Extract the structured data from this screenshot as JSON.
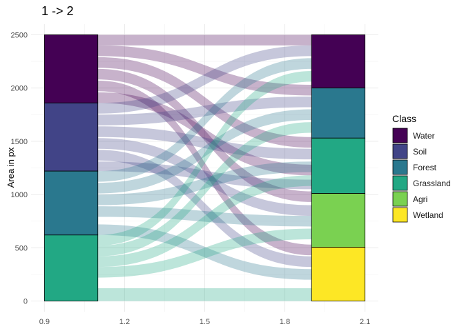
{
  "chart_data": {
    "type": "alluvial",
    "title": "1 -> 2",
    "xlabel": "",
    "ylabel": "Area in px",
    "xlim": [
      0.85,
      2.15
    ],
    "ylim": [
      -100,
      2600
    ],
    "x_ticks": [
      0.9,
      1.2,
      1.5,
      1.8,
      2.1
    ],
    "x_tick_labels": [
      "0.9",
      "1.2",
      "1.5",
      "1.8",
      "2.1"
    ],
    "y_ticks": [
      0,
      500,
      1000,
      1500,
      2000,
      2500
    ],
    "y_tick_labels": [
      "0",
      "500",
      "1000",
      "1500",
      "2000",
      "2500"
    ],
    "grid": true,
    "legend_title": "Class",
    "legend_position": "right",
    "classes": [
      {
        "name": "Water",
        "color": "#440154"
      },
      {
        "name": "Soil",
        "color": "#414487"
      },
      {
        "name": "Forest",
        "color": "#2A788E"
      },
      {
        "name": "Grassland",
        "color": "#22A884"
      },
      {
        "name": "Agri",
        "color": "#7AD151"
      },
      {
        "name": "Wetland",
        "color": "#FDE725"
      }
    ],
    "stratum_width": 0.2,
    "axes": [
      {
        "x": 1.0,
        "strata": [
          {
            "class": "Water",
            "from": 1860,
            "to": 2500
          },
          {
            "class": "Soil",
            "from": 1220,
            "to": 1860
          },
          {
            "class": "Forest",
            "from": 620,
            "to": 1220
          },
          {
            "class": "Grassland",
            "from": 0,
            "to": 620
          }
        ]
      },
      {
        "x": 2.0,
        "strata": [
          {
            "class": "Water",
            "from": 2000,
            "to": 2500
          },
          {
            "class": "Forest",
            "from": 1530,
            "to": 2000
          },
          {
            "class": "Grassland",
            "from": 1010,
            "to": 1530
          },
          {
            "class": "Agri",
            "from": 505,
            "to": 1010
          },
          {
            "class": "Wetland",
            "from": 0,
            "to": 505
          }
        ]
      }
    ],
    "flows": [
      {
        "from_class": "Water",
        "y0": [
          2400,
          2500
        ],
        "y1": [
          2400,
          2500
        ]
      },
      {
        "from_class": "Water",
        "y0": [
          2300,
          2400
        ],
        "y1": [
          1930,
          2030
        ]
      },
      {
        "from_class": "Water",
        "y0": [
          2190,
          2290
        ],
        "y1": [
          1440,
          1540
        ]
      },
      {
        "from_class": "Water",
        "y0": [
          2080,
          2180
        ],
        "y1": [
          930,
          1030
        ]
      },
      {
        "from_class": "Water",
        "y0": [
          1970,
          2070
        ],
        "y1": [
          430,
          530
        ]
      },
      {
        "from_class": "Water",
        "y0": [
          1860,
          1960
        ],
        "y1": [
          1180,
          1280
        ]
      },
      {
        "from_class": "Soil",
        "y0": [
          1760,
          1860
        ],
        "y1": [
          2300,
          2400
        ]
      },
      {
        "from_class": "Soil",
        "y0": [
          1650,
          1750
        ],
        "y1": [
          1820,
          1920
        ]
      },
      {
        "from_class": "Soil",
        "y0": [
          1540,
          1640
        ],
        "y1": [
          1330,
          1430
        ]
      },
      {
        "from_class": "Soil",
        "y0": [
          1430,
          1530
        ],
        "y1": [
          800,
          900
        ]
      },
      {
        "from_class": "Soil",
        "y0": [
          1320,
          1420
        ],
        "y1": [
          320,
          420
        ]
      },
      {
        "from_class": "Soil",
        "y0": [
          1220,
          1310
        ],
        "y1": [
          1050,
          1140
        ]
      },
      {
        "from_class": "Forest",
        "y0": [
          1120,
          1220
        ],
        "y1": [
          2180,
          2280
        ]
      },
      {
        "from_class": "Forest",
        "y0": [
          1010,
          1110
        ],
        "y1": [
          1700,
          1800
        ]
      },
      {
        "from_class": "Forest",
        "y0": [
          900,
          1000
        ],
        "y1": [
          1210,
          1310
        ]
      },
      {
        "from_class": "Forest",
        "y0": [
          790,
          890
        ],
        "y1": [
          700,
          800
        ]
      },
      {
        "from_class": "Forest",
        "y0": [
          620,
          720
        ],
        "y1": [
          200,
          300
        ]
      },
      {
        "from_class": "Grassland",
        "y0": [
          520,
          620
        ],
        "y1": [
          2060,
          2160
        ]
      },
      {
        "from_class": "Grassland",
        "y0": [
          420,
          520
        ],
        "y1": [
          1580,
          1680
        ]
      },
      {
        "from_class": "Grassland",
        "y0": [
          320,
          420
        ],
        "y1": [
          1080,
          1180
        ]
      },
      {
        "from_class": "Grassland",
        "y0": [
          220,
          320
        ],
        "y1": [
          580,
          680
        ]
      },
      {
        "from_class": "Grassland",
        "y0": [
          0,
          120
        ],
        "y1": [
          0,
          120
        ]
      }
    ]
  }
}
